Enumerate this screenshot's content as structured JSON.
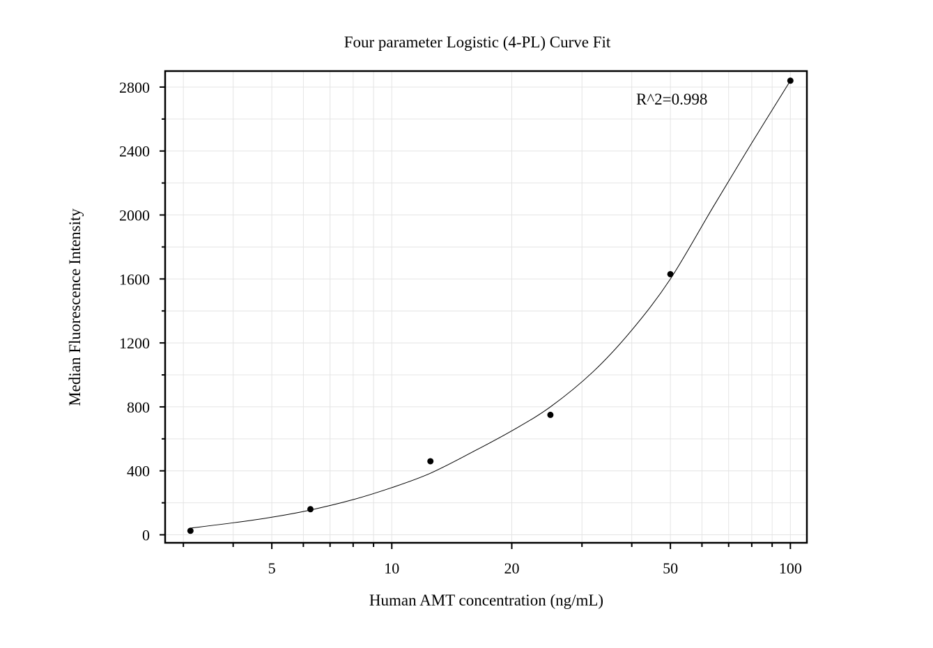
{
  "chart_data": {
    "type": "scatter",
    "title": "Four parameter Logistic (4-PL) Curve Fit",
    "xlabel": "Human AMT concentration (ng/mL)",
    "ylabel": "Median Fluorescence Intensity",
    "x_scale": "log",
    "xlim": [
      2.7,
      110
    ],
    "ylim": [
      -50,
      2900
    ],
    "x_ticks": [
      5,
      10,
      20,
      50,
      100
    ],
    "x_tick_labels": [
      "5",
      "10",
      "20",
      "50",
      "100"
    ],
    "y_ticks": [
      0,
      400,
      800,
      1200,
      1600,
      2000,
      2400,
      2800
    ],
    "y_tick_labels": [
      "0",
      "400",
      "800",
      "1200",
      "1600",
      "2000",
      "2400",
      "2800"
    ],
    "grid": true,
    "series": [
      {
        "type": "scatter",
        "x": [
          3.125,
          6.25,
          12.5,
          25,
          50,
          100
        ],
        "y": [
          25,
          160,
          460,
          750,
          1630,
          2840
        ]
      },
      {
        "type": "line",
        "fit": "4-PL",
        "x": [
          3.125,
          4,
          5,
          6.25,
          8,
          10,
          12.5,
          16,
          20,
          25,
          32,
          40,
          50,
          64,
          80,
          100
        ],
        "y": [
          42,
          75,
          110,
          155,
          220,
          295,
          385,
          520,
          650,
          800,
          1020,
          1280,
          1600,
          2050,
          2450,
          2840
        ]
      }
    ],
    "annotations": [
      {
        "text": "R^2=0.998",
        "position": "top-right"
      }
    ]
  }
}
